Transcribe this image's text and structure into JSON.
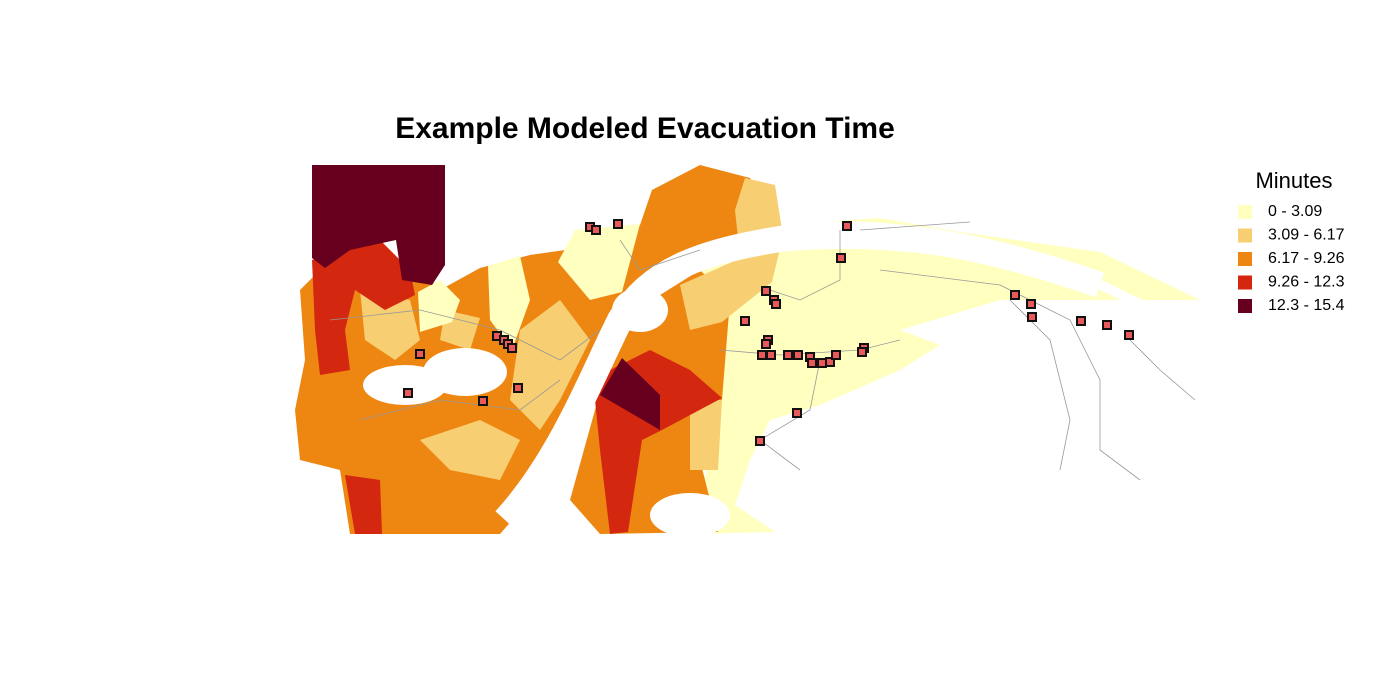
{
  "title": "Example Modeled Evacuation Time",
  "legend": {
    "title": "Minutes",
    "items": [
      {
        "label": "0 - 3.09",
        "color": "#ffffbf"
      },
      {
        "label": "3.09 - 6.17",
        "color": "#f7cf72"
      },
      {
        "label": "6.17 - 9.26",
        "color": "#ee8612"
      },
      {
        "label": "9.26 - 12.3",
        "color": "#d3270f"
      },
      {
        "label": "12.3 - 15.4",
        "color": "#67001f"
      }
    ]
  }
}
